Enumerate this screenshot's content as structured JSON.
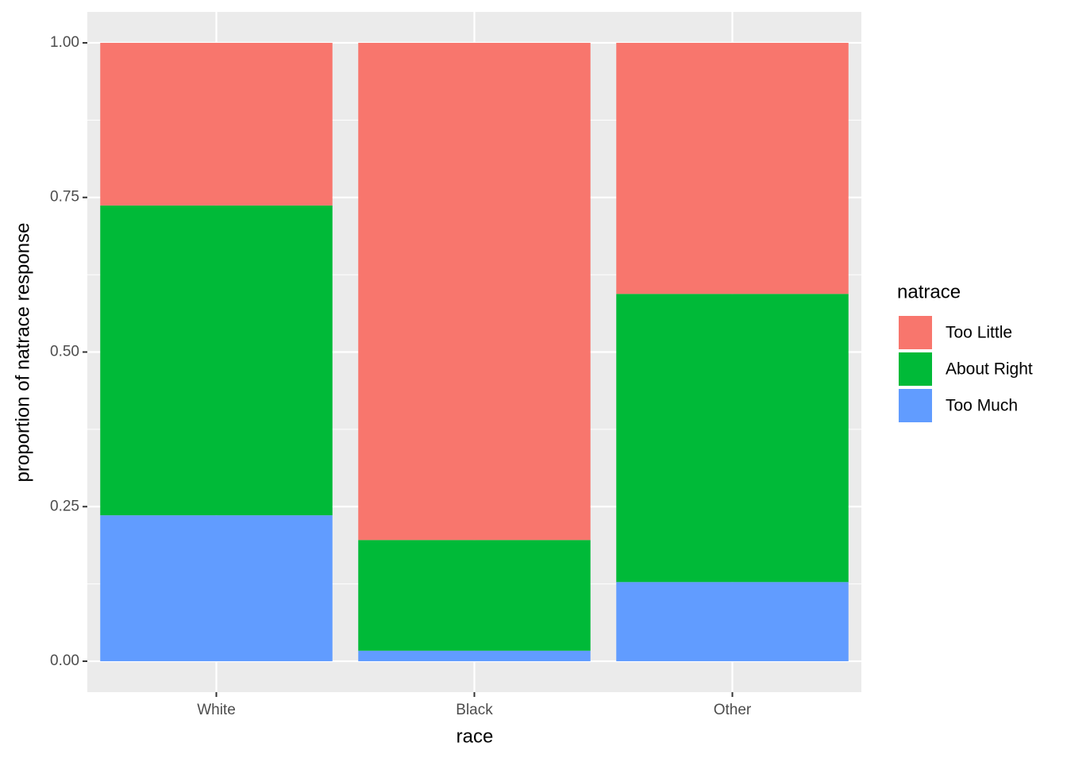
{
  "chart_data": {
    "type": "stacked_bar",
    "x_label": "race",
    "y_label": "proportion of natrace response",
    "legend_title": "natrace",
    "categories": [
      "White",
      "Black",
      "Other"
    ],
    "series": [
      {
        "name": "Too Little",
        "color": "#f8766d",
        "values": [
          0.263,
          0.804,
          0.406
        ]
      },
      {
        "name": "About Right",
        "color": "#00ba38",
        "values": [
          0.501,
          0.179,
          0.466
        ]
      },
      {
        "name": "Too Much",
        "color": "#619cff",
        "values": [
          0.236,
          0.017,
          0.128
        ]
      }
    ],
    "ylim": [
      -0.05,
      1.05
    ],
    "yticks": [
      {
        "value": 0,
        "label": "0.00"
      },
      {
        "value": 0.25,
        "label": "0.25"
      },
      {
        "value": 0.5,
        "label": "0.50"
      },
      {
        "value": 0.75,
        "label": "0.75"
      },
      {
        "value": 1,
        "label": "1.00"
      }
    ],
    "grid": true,
    "legend_position": "right"
  }
}
